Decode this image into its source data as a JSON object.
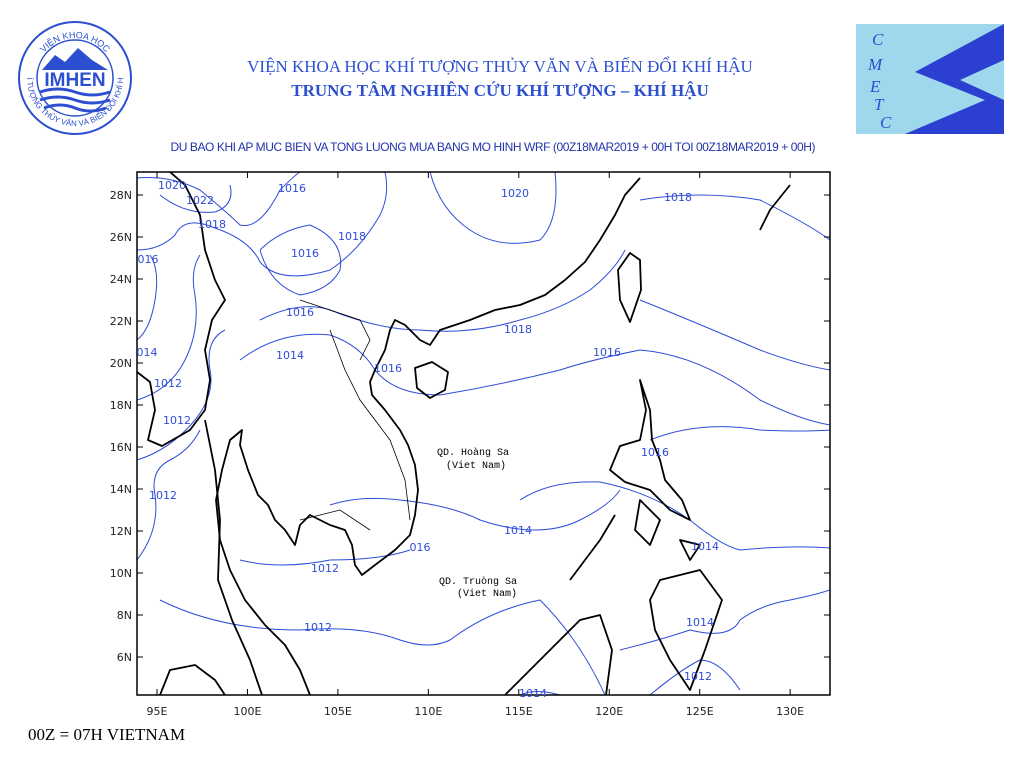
{
  "header": {
    "institute": "VIỆN KHOA HỌC KHÍ TƯỢNG THỦY VĂN VÀ BIẾN ĐỔI KHÍ HẬU",
    "center": "TRUNG TÂM NGHIÊN CỨU KHÍ TƯỢNG – KHÍ HẬU"
  },
  "logos": {
    "imhen": "IMHEN",
    "imhen_top": "VIỆN KHOA HỌC",
    "imhen_ring": "KHÍ TƯỢNG THỦY VĂN VÀ BIẾN ĐỔI KHÍ HẬU",
    "cmetc_letters": [
      "C",
      "M",
      "E",
      "T",
      "C"
    ]
  },
  "map": {
    "title": "DU BAO KHI AP MUC BIEN VA TONG LUONG MUA BANG MO HINH WRF (00Z18MAR2019 + 00H TOI 00Z18MAR2019 + 00H)",
    "lon_labels": [
      "95E",
      "100E",
      "105E",
      "110E",
      "115E",
      "120E",
      "125E",
      "130E"
    ],
    "lat_labels": [
      "28N",
      "26N",
      "24N",
      "22N",
      "20N",
      "18N",
      "16N",
      "14N",
      "12N",
      "10N",
      "8N",
      "6N"
    ],
    "places": [
      {
        "name": "QD. Hoàng Sa",
        "note": "(Viet Nam)"
      },
      {
        "name": "QD. Truòng Sa",
        "note": "(Viet Nam)"
      }
    ],
    "isobar_labels": [
      "1020",
      "1022",
      "1018",
      "1016",
      "1016",
      "1018",
      "1020",
      "1018",
      "016",
      "1016",
      "1014",
      "1016",
      "1018",
      "1016",
      "014",
      "1012",
      "1012",
      "1012",
      "1016",
      "1014",
      "016",
      "1014",
      "1012",
      "1012",
      "1014",
      "1012",
      "1014"
    ]
  },
  "footer": "00Z = 07H VIETNAM"
}
